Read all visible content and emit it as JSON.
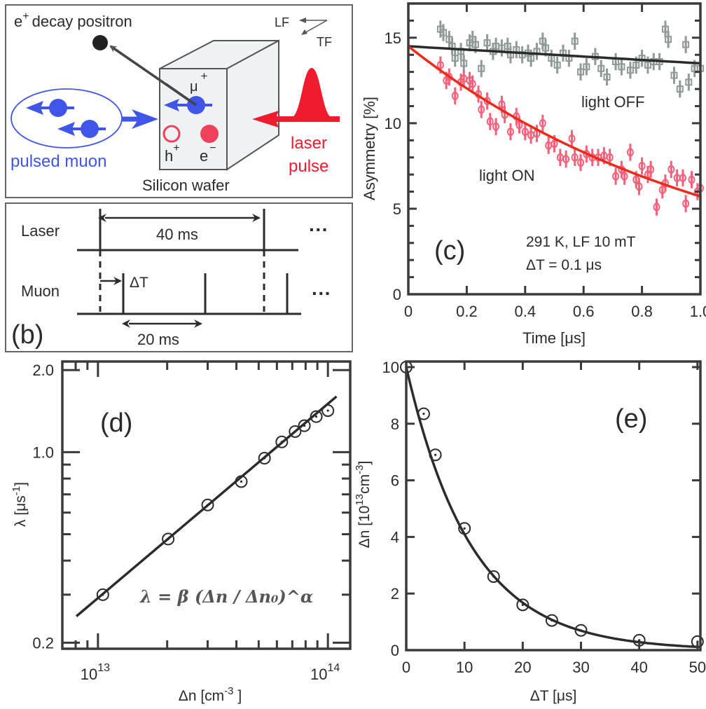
{
  "panel_a": {
    "positron_label": "e",
    "positron_sup": "+",
    "positron_text": "decay positron",
    "lf_label": "LF",
    "tf_label": "TF",
    "muon_label": "μ",
    "muon_sup": "+",
    "hole_label": "h",
    "hole_sup": "+",
    "electron_label": "e",
    "electron_sup": "−",
    "pulsed_muon_label": "pulsed muon",
    "wafer_label": "Silicon wafer",
    "laser_label_1": "laser",
    "laser_label_2": "pulse",
    "colors": {
      "muon": "#3f55e8",
      "laser": "#ee1c2e",
      "carrier": "#f0405a",
      "wafer": "#eef2f2"
    }
  },
  "panel_b": {
    "laser_row": "Laser",
    "muon_row": "Muon",
    "laser_period": "40 ms",
    "muon_period": "20 ms",
    "delay_label": "ΔT",
    "ellipsis_1": "···",
    "ellipsis_2": "···",
    "panel_label": "(b)"
  },
  "chart_data": [
    {
      "id": "c",
      "type": "scatter",
      "panel_label": "(c)",
      "xlabel": "Time [μs]",
      "ylabel": "Asymmetry [%]",
      "xlim": [
        0,
        1.0
      ],
      "ylim": [
        0,
        17
      ],
      "xticks": [
        "0",
        "0.2",
        "0.4",
        "0.6",
        "0.8",
        "1.0"
      ],
      "yticks": [
        "0",
        "5",
        "10",
        "15"
      ],
      "annotation_1": "291 K, LF 10 mT",
      "annotation_2": "ΔT = 0.1 μs",
      "series": [
        {
          "name": "light OFF",
          "color": "#8f9a98",
          "marker": "square",
          "error": 0.5,
          "x": [
            0.11,
            0.12,
            0.14,
            0.15,
            0.16,
            0.18,
            0.19,
            0.21,
            0.22,
            0.23,
            0.25,
            0.27,
            0.29,
            0.3,
            0.32,
            0.34,
            0.35,
            0.37,
            0.39,
            0.41,
            0.42,
            0.44,
            0.46,
            0.47,
            0.49,
            0.51,
            0.53,
            0.55,
            0.57,
            0.59,
            0.61,
            0.64,
            0.66,
            0.68,
            0.71,
            0.73,
            0.76,
            0.78,
            0.8,
            0.82,
            0.84,
            0.86,
            0.88,
            0.89,
            0.91,
            0.93,
            0.95,
            0.96,
            0.98,
            1.0
          ],
          "y": [
            15.5,
            15.3,
            14.9,
            14.5,
            13.8,
            14.2,
            13.5,
            14.7,
            14.9,
            14.6,
            13.2,
            14.7,
            14.2,
            14.5,
            14.4,
            14.5,
            14.0,
            14.3,
            14.0,
            14.1,
            13.8,
            14.2,
            14.8,
            14.4,
            13.8,
            13.4,
            14.1,
            13.8,
            14.8,
            13.0,
            13.3,
            13.9,
            13.2,
            12.7,
            13.6,
            13.3,
            13.1,
            13.4,
            13.8,
            13.4,
            13.6,
            13.6,
            15.5,
            14.9,
            12.8,
            12.0,
            14.6,
            12.4,
            13.2,
            13.2
          ],
          "fit": {
            "type": "linear",
            "y0": 14.5,
            "y1": 13.5
          },
          "fit_color": "#2b2b2b"
        },
        {
          "name": "light ON",
          "color": "#f2607a",
          "marker": "circle",
          "error": 0.5,
          "x": [
            0.11,
            0.13,
            0.14,
            0.16,
            0.18,
            0.19,
            0.21,
            0.22,
            0.24,
            0.25,
            0.27,
            0.28,
            0.3,
            0.32,
            0.33,
            0.35,
            0.37,
            0.38,
            0.4,
            0.42,
            0.44,
            0.46,
            0.48,
            0.5,
            0.52,
            0.54,
            0.56,
            0.57,
            0.59,
            0.61,
            0.63,
            0.65,
            0.67,
            0.69,
            0.71,
            0.73,
            0.74,
            0.76,
            0.78,
            0.79,
            0.8,
            0.82,
            0.83,
            0.85,
            0.87,
            0.88,
            0.9,
            0.92,
            0.94,
            0.95,
            0.97,
            0.99,
            1.0
          ],
          "y": [
            13.4,
            12.5,
            12.7,
            11.6,
            12.4,
            12.6,
            12.5,
            12.3,
            11.7,
            10.8,
            11.3,
            10.1,
            9.8,
            11.1,
            10.5,
            9.5,
            10.4,
            9.9,
            9.5,
            9.3,
            9.4,
            10.0,
            8.7,
            8.8,
            8.0,
            7.9,
            9.1,
            8.0,
            7.7,
            8.2,
            8.0,
            8.0,
            8.1,
            8.0,
            6.9,
            7.3,
            6.9,
            8.3,
            6.7,
            6.3,
            7.5,
            7.0,
            7.3,
            5.1,
            6.1,
            6.5,
            7.3,
            6.8,
            6.8,
            5.3,
            6.7,
            6.0,
            6.2
          ],
          "fit": {
            "type": "exponential",
            "A0": 14.5,
            "rate": 0.93
          },
          "fit_color": "#ee2a1a"
        }
      ]
    },
    {
      "id": "d",
      "type": "scatter",
      "panel_label": "(d)",
      "xlabel": "Δn [cm",
      "xlabel_sup": "-3",
      "xlabel_end": " ]",
      "ylabel": "λ [μs",
      "ylabel_sup": "-1",
      "ylabel_end": "]",
      "xscale": "log",
      "yscale": "log",
      "xlim": [
        7000000000000.0,
        125000000000000.0
      ],
      "ylim": [
        0.19,
        2.15
      ],
      "xticks": [
        {
          "base": "10",
          "exp": "13",
          "value": 10000000000000.0
        },
        {
          "base": "10",
          "exp": "14",
          "value": 100000000000000.0
        }
      ],
      "yticks": [
        {
          "label": "0.2",
          "value": 0.2
        },
        {
          "label": "1.0",
          "value": 1.0
        },
        {
          "label": "2.0",
          "value": 2.0
        }
      ],
      "formula": "λ = β (Δn / Δn₀)^α",
      "series": [
        {
          "marker": "open-circle",
          "color": "#2b2b2b",
          "x": [
            10500000000000.0,
            20200000000000.0,
            30000000000000.0,
            42000000000000.0,
            53000000000000.0,
            63000000000000.0,
            72000000000000.0,
            79000000000000.0,
            89000000000000.0,
            100000000000000.0
          ],
          "y": [
            0.3,
            0.48,
            0.64,
            0.78,
            0.95,
            1.09,
            1.19,
            1.25,
            1.35,
            1.42
          ],
          "fit": {
            "type": "power",
            "x": [
              8060000000000.0,
              109000000000000.0
            ],
            "y": [
              0.25,
              1.6
            ]
          }
        }
      ]
    },
    {
      "id": "e",
      "type": "scatter",
      "panel_label": "(e)",
      "xlabel": "ΔT [μs]",
      "ylabel": "Δn  [10",
      "ylabel_sup": "13",
      "ylabel_mid": "cm",
      "ylabel_sup2": "-3",
      "ylabel_end": "]",
      "xlim": [
        0,
        50.5
      ],
      "ylim": [
        0,
        10
      ],
      "xticks": [
        "0",
        "10",
        "20",
        "30",
        "40",
        "50"
      ],
      "yticks": [
        "0",
        "2",
        "4",
        "6",
        "8",
        "10"
      ],
      "series": [
        {
          "marker": "open-circle",
          "color": "#2b2b2b",
          "x": [
            0,
            3,
            5,
            10,
            15,
            20,
            25,
            30,
            40,
            50
          ],
          "y": [
            10,
            8.35,
            6.9,
            4.3,
            2.6,
            1.6,
            1.05,
            0.7,
            0.35,
            0.3
          ],
          "fit": {
            "type": "exponential",
            "A0": 10,
            "tau": 11.2
          }
        }
      ]
    }
  ]
}
